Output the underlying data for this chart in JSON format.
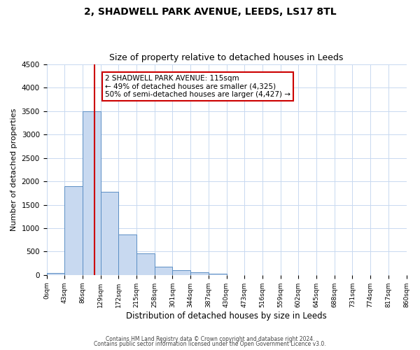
{
  "title": "2, SHADWELL PARK AVENUE, LEEDS, LS17 8TL",
  "subtitle": "Size of property relative to detached houses in Leeds",
  "xlabel": "Distribution of detached houses by size in Leeds",
  "ylabel": "Number of detached properties",
  "bin_edges": [
    0,
    43,
    86,
    129,
    172,
    215,
    258,
    301,
    344,
    387,
    430,
    473,
    516,
    559,
    602,
    645,
    688,
    731,
    774,
    817,
    860
  ],
  "bar_heights": [
    50,
    1900,
    3500,
    1780,
    860,
    460,
    175,
    100,
    55,
    35,
    0,
    0,
    0,
    0,
    0,
    0,
    0,
    0,
    0,
    0
  ],
  "bar_color": "#c8d9f0",
  "bar_edge_color": "#5b8ec4",
  "vline_x": 115,
  "vline_color": "#cc0000",
  "annotation_line1": "2 SHADWELL PARK AVENUE: 115sqm",
  "annotation_line2": "← 49% of detached houses are smaller (4,325)",
  "annotation_line3": "50% of semi-detached houses are larger (4,427) →",
  "annotation_box_color": "#ffffff",
  "annotation_box_edge": "#cc0000",
  "ylim": [
    0,
    4500
  ],
  "yticks": [
    0,
    500,
    1000,
    1500,
    2000,
    2500,
    3000,
    3500,
    4000,
    4500
  ],
  "tick_labels": [
    "0sqm",
    "43sqm",
    "86sqm",
    "129sqm",
    "172sqm",
    "215sqm",
    "258sqm",
    "301sqm",
    "344sqm",
    "387sqm",
    "430sqm",
    "473sqm",
    "516sqm",
    "559sqm",
    "602sqm",
    "645sqm",
    "688sqm",
    "731sqm",
    "774sqm",
    "817sqm",
    "860sqm"
  ],
  "footer_line1": "Contains HM Land Registry data © Crown copyright and database right 2024.",
  "footer_line2": "Contains public sector information licensed under the Open Government Licence v3.0.",
  "background_color": "#ffffff",
  "grid_color": "#c8d9f0",
  "title_fontsize": 10,
  "subtitle_fontsize": 9,
  "annotation_fontsize": 7.5
}
